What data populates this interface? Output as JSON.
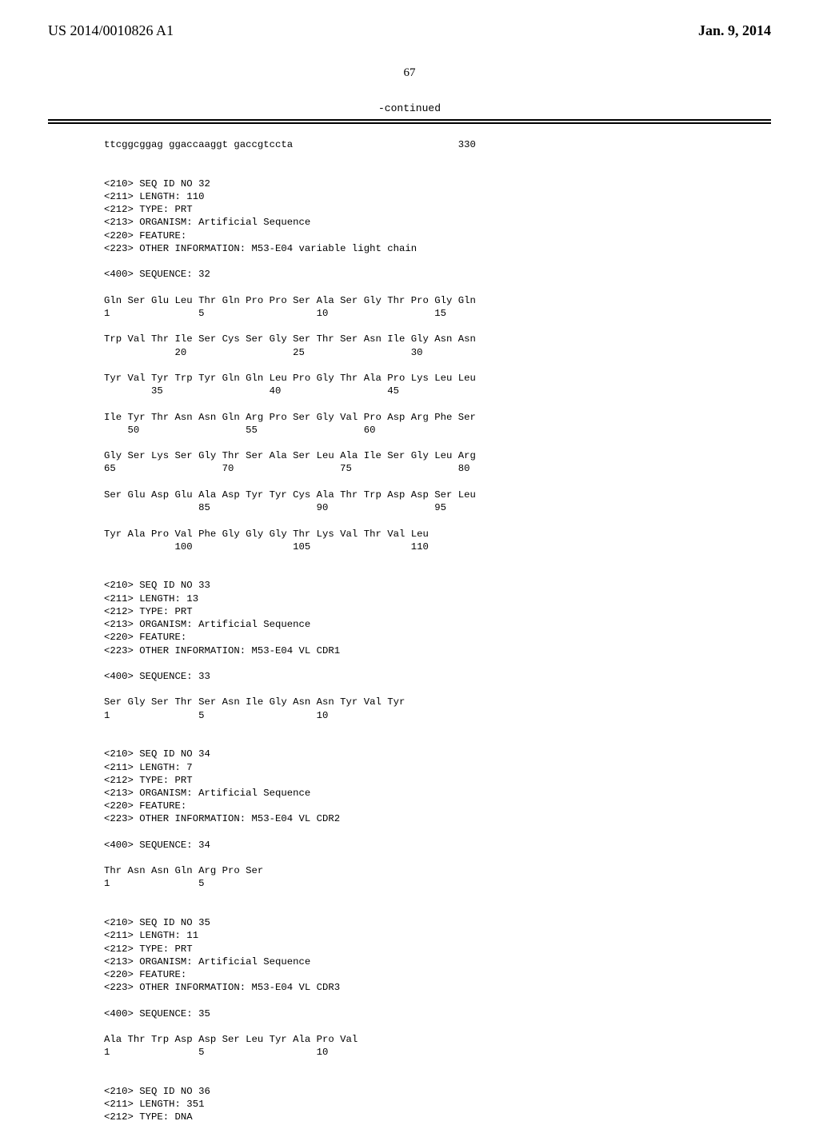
{
  "header": {
    "pub_number": "US 2014/0010826 A1",
    "pub_date": "Jan. 9, 2014"
  },
  "page_number": "67",
  "continued_label": "-continued",
  "seq_line": "ttcggcggag ggaccaaggt gaccgtccta",
  "seq_count": "330",
  "entries": [
    {
      "meta": [
        "<210> SEQ ID NO 32",
        "<211> LENGTH: 110",
        "<212> TYPE: PRT",
        "<213> ORGANISM: Artificial Sequence",
        "<220> FEATURE:",
        "<223> OTHER INFORMATION: M53-E04 variable light chain"
      ],
      "seq_header": "<400> SEQUENCE: 32",
      "protein_rows": [
        {
          "aa": "Gln Ser Glu Leu Thr Gln Pro Pro Ser Ala Ser Gly Thr Pro Gly Gln",
          "nums": "1               5                   10                  15"
        },
        {
          "aa": "Trp Val Thr Ile Ser Cys Ser Gly Ser Thr Ser Asn Ile Gly Asn Asn",
          "nums": "            20                  25                  30"
        },
        {
          "aa": "Tyr Val Tyr Trp Tyr Gln Gln Leu Pro Gly Thr Ala Pro Lys Leu Leu",
          "nums": "        35                  40                  45"
        },
        {
          "aa": "Ile Tyr Thr Asn Asn Gln Arg Pro Ser Gly Val Pro Asp Arg Phe Ser",
          "nums": "    50                  55                  60"
        },
        {
          "aa": "Gly Ser Lys Ser Gly Thr Ser Ala Ser Leu Ala Ile Ser Gly Leu Arg",
          "nums": "65                  70                  75                  80"
        },
        {
          "aa": "Ser Glu Asp Glu Ala Asp Tyr Tyr Cys Ala Thr Trp Asp Asp Ser Leu",
          "nums": "                85                  90                  95"
        },
        {
          "aa": "Tyr Ala Pro Val Phe Gly Gly Gly Thr Lys Val Thr Val Leu",
          "nums": "            100                 105                 110"
        }
      ]
    },
    {
      "meta": [
        "<210> SEQ ID NO 33",
        "<211> LENGTH: 13",
        "<212> TYPE: PRT",
        "<213> ORGANISM: Artificial Sequence",
        "<220> FEATURE:",
        "<223> OTHER INFORMATION: M53-E04 VL CDR1"
      ],
      "seq_header": "<400> SEQUENCE: 33",
      "protein_rows": [
        {
          "aa": "Ser Gly Ser Thr Ser Asn Ile Gly Asn Asn Tyr Val Tyr",
          "nums": "1               5                   10"
        }
      ]
    },
    {
      "meta": [
        "<210> SEQ ID NO 34",
        "<211> LENGTH: 7",
        "<212> TYPE: PRT",
        "<213> ORGANISM: Artificial Sequence",
        "<220> FEATURE:",
        "<223> OTHER INFORMATION: M53-E04 VL CDR2"
      ],
      "seq_header": "<400> SEQUENCE: 34",
      "protein_rows": [
        {
          "aa": "Thr Asn Asn Gln Arg Pro Ser",
          "nums": "1               5"
        }
      ]
    },
    {
      "meta": [
        "<210> SEQ ID NO 35",
        "<211> LENGTH: 11",
        "<212> TYPE: PRT",
        "<213> ORGANISM: Artificial Sequence",
        "<220> FEATURE:",
        "<223> OTHER INFORMATION: M53-E04 VL CDR3"
      ],
      "seq_header": "<400> SEQUENCE: 35",
      "protein_rows": [
        {
          "aa": "Ala Thr Trp Asp Asp Ser Leu Tyr Ala Pro Val",
          "nums": "1               5                   10"
        }
      ]
    },
    {
      "meta": [
        "<210> SEQ ID NO 36",
        "<211> LENGTH: 351",
        "<212> TYPE: DNA"
      ],
      "seq_header": "",
      "protein_rows": []
    }
  ]
}
